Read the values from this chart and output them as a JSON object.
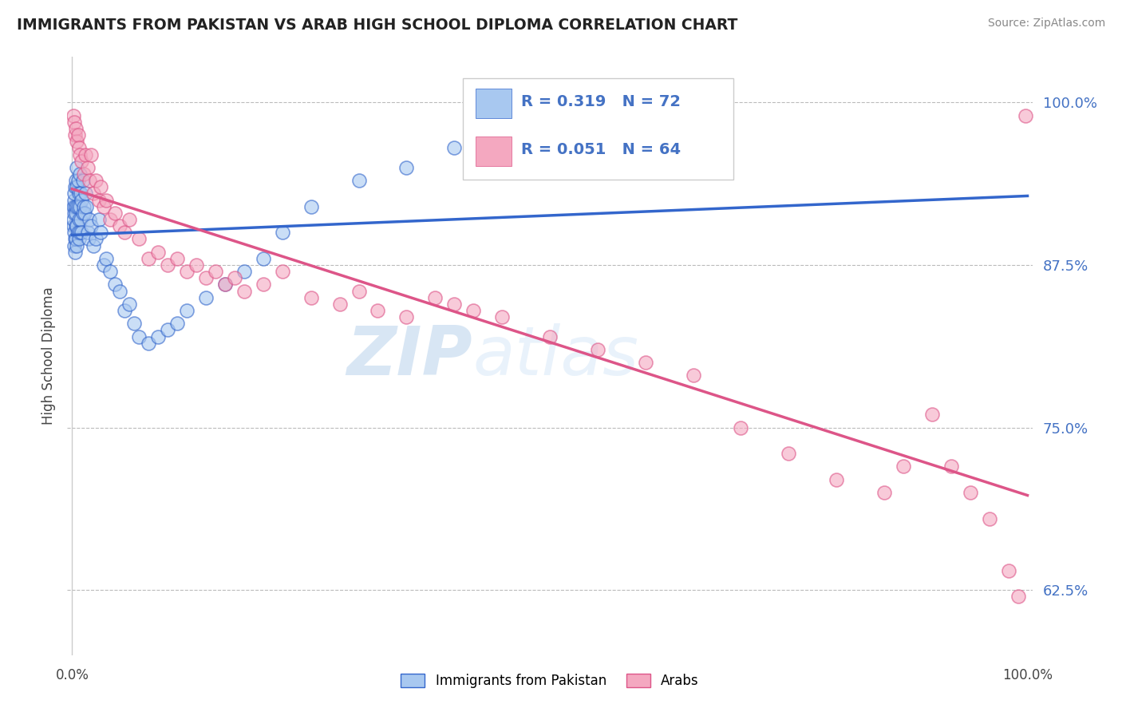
{
  "title": "IMMIGRANTS FROM PAKISTAN VS ARAB HIGH SCHOOL DIPLOMA CORRELATION CHART",
  "source": "Source: ZipAtlas.com",
  "ylabel": "High School Diploma",
  "legend_blue_R": "R = 0.319",
  "legend_blue_N": "N = 72",
  "legend_pink_R": "R = 0.051",
  "legend_pink_N": "N = 64",
  "legend_label_blue": "Immigrants from Pakistan",
  "legend_label_pink": "Arabs",
  "blue_color": "#A8C8F0",
  "pink_color": "#F4A8C0",
  "blue_line_color": "#3366CC",
  "pink_line_color": "#DD5588",
  "watermark_zip": "ZIP",
  "watermark_atlas": "atlas",
  "blue_x": [
    0.001,
    0.001,
    0.001,
    0.002,
    0.002,
    0.002,
    0.002,
    0.002,
    0.003,
    0.003,
    0.003,
    0.003,
    0.004,
    0.004,
    0.004,
    0.004,
    0.005,
    0.005,
    0.005,
    0.005,
    0.005,
    0.006,
    0.006,
    0.006,
    0.007,
    0.007,
    0.007,
    0.008,
    0.008,
    0.008,
    0.009,
    0.009,
    0.01,
    0.01,
    0.011,
    0.011,
    0.012,
    0.013,
    0.014,
    0.015,
    0.016,
    0.017,
    0.018,
    0.02,
    0.022,
    0.025,
    0.028,
    0.03,
    0.033,
    0.036,
    0.04,
    0.045,
    0.05,
    0.055,
    0.06,
    0.065,
    0.07,
    0.08,
    0.09,
    0.1,
    0.11,
    0.12,
    0.14,
    0.16,
    0.18,
    0.2,
    0.22,
    0.25,
    0.3,
    0.35,
    0.4,
    0.42
  ],
  "blue_y": [
    0.905,
    0.91,
    0.92,
    0.89,
    0.9,
    0.915,
    0.925,
    0.93,
    0.885,
    0.895,
    0.92,
    0.935,
    0.895,
    0.905,
    0.915,
    0.94,
    0.89,
    0.905,
    0.92,
    0.935,
    0.95,
    0.9,
    0.92,
    0.94,
    0.895,
    0.91,
    0.93,
    0.9,
    0.92,
    0.945,
    0.91,
    0.93,
    0.9,
    0.925,
    0.915,
    0.94,
    0.92,
    0.915,
    0.93,
    0.92,
    0.9,
    0.895,
    0.91,
    0.905,
    0.89,
    0.895,
    0.91,
    0.9,
    0.875,
    0.88,
    0.87,
    0.86,
    0.855,
    0.84,
    0.845,
    0.83,
    0.82,
    0.815,
    0.82,
    0.825,
    0.83,
    0.84,
    0.85,
    0.86,
    0.87,
    0.88,
    0.9,
    0.92,
    0.94,
    0.95,
    0.965,
    0.985
  ],
  "pink_x": [
    0.001,
    0.002,
    0.003,
    0.004,
    0.005,
    0.006,
    0.007,
    0.008,
    0.01,
    0.012,
    0.014,
    0.016,
    0.018,
    0.02,
    0.022,
    0.025,
    0.028,
    0.03,
    0.033,
    0.036,
    0.04,
    0.045,
    0.05,
    0.055,
    0.06,
    0.07,
    0.08,
    0.09,
    0.1,
    0.11,
    0.12,
    0.13,
    0.14,
    0.15,
    0.16,
    0.17,
    0.18,
    0.2,
    0.22,
    0.25,
    0.28,
    0.3,
    0.32,
    0.35,
    0.38,
    0.4,
    0.42,
    0.45,
    0.5,
    0.55,
    0.6,
    0.65,
    0.7,
    0.75,
    0.8,
    0.85,
    0.87,
    0.9,
    0.92,
    0.94,
    0.96,
    0.98,
    0.99,
    0.998
  ],
  "pink_y": [
    0.99,
    0.985,
    0.975,
    0.98,
    0.97,
    0.975,
    0.965,
    0.96,
    0.955,
    0.945,
    0.96,
    0.95,
    0.94,
    0.96,
    0.93,
    0.94,
    0.925,
    0.935,
    0.92,
    0.925,
    0.91,
    0.915,
    0.905,
    0.9,
    0.91,
    0.895,
    0.88,
    0.885,
    0.875,
    0.88,
    0.87,
    0.875,
    0.865,
    0.87,
    0.86,
    0.865,
    0.855,
    0.86,
    0.87,
    0.85,
    0.845,
    0.855,
    0.84,
    0.835,
    0.85,
    0.845,
    0.84,
    0.835,
    0.82,
    0.81,
    0.8,
    0.79,
    0.75,
    0.73,
    0.71,
    0.7,
    0.72,
    0.76,
    0.72,
    0.7,
    0.68,
    0.64,
    0.62,
    0.99
  ]
}
